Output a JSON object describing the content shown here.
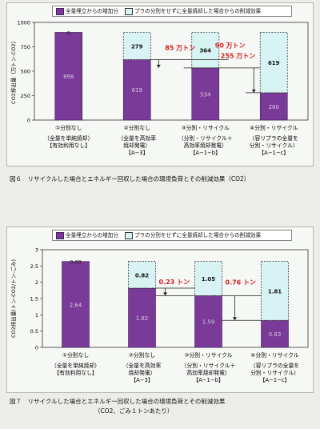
{
  "legend": {
    "increase": "全量埋立からの増加分",
    "reduction": "プラの分別をせずに全量焼却した場合からの削減効果"
  },
  "colors": {
    "increase": "#7a3b98",
    "reduction": "#d8f3f3",
    "annotation": "#d42020"
  },
  "chart_data": [
    {
      "type": "bar",
      "stacked": true,
      "ylabel": "CO2排出量（万トン-CO2）",
      "ylim": [
        0,
        1000
      ],
      "yticks": [
        0,
        250,
        500,
        750,
        1000
      ],
      "categories": [
        [
          "①分別なし",
          "（全量を単純焼却）",
          "【有効利用なし】"
        ],
        [
          "②分別なし",
          "（全量を高効率",
          "焼却発電）",
          "【A−3】"
        ],
        [
          "③分別・リサイクル",
          "（分別・リサイクル＋",
          "高効率焼却発電）",
          "【A−1−b】"
        ],
        [
          "④分別・リサイクル",
          "（容リプラの全量を",
          "分別・リサイクル）",
          "【A−1−c】"
        ]
      ],
      "series": [
        {
          "name": "全量埋立からの増加分",
          "values": [
            898,
            619,
            534,
            280
          ],
          "labels": [
            "898",
            "619",
            "534",
            "280"
          ]
        },
        {
          "name": "プラの分別をせずに全量焼却した場合からの削減効果",
          "values": [
            0,
            279,
            364,
            619
          ],
          "labels": [
            "0",
            "279",
            "364",
            "619"
          ]
        }
      ],
      "annotations": [
        "85 万トン",
        "90 万トン",
        "255 万トン"
      ],
      "caption": "図６　リサイクルした場合とエネルギー回収した場合の環境負荷とその削減効果（CO2）"
    },
    {
      "type": "bar",
      "stacked": true,
      "ylabel": "CO2排出量(トン-CO2/トン-ごみ)",
      "ylim": [
        0,
        3.0
      ],
      "yticks": [
        0,
        0.5,
        1.0,
        1.5,
        2.0,
        2.5,
        3.0
      ],
      "categories": [
        [
          "①分別なし",
          "（全量を単純焼却）",
          "【有効利用なし】"
        ],
        [
          "②分別なし",
          "（全量を高効率",
          "焼却発電）",
          "【A−3】"
        ],
        [
          "③分別・リサイクル",
          "（分別・リサイクル＋",
          "高効率焼却発電）",
          "【A−1−b】"
        ],
        [
          "④分別・リサイクル",
          "（容リプラの全量を",
          "分別・リサイクル）",
          "【A−1−c】"
        ]
      ],
      "series": [
        {
          "name": "全量埋立からの増加分",
          "values": [
            2.64,
            1.82,
            1.59,
            0.83
          ],
          "labels": [
            "2.64",
            "1.82",
            "1.59",
            "0.83"
          ]
        },
        {
          "name": "プラの分別をせずに全量焼却した場合からの削減効果",
          "values": [
            0,
            0.82,
            1.05,
            1.81
          ],
          "labels": [
            "0.00",
            "0.82",
            "1.05",
            "1.81"
          ]
        }
      ],
      "annotations": [
        "0.23 トン",
        "0.76 トン"
      ],
      "caption": "図７　リサイクルした場合とエネルギー回収した場合の環境負荷とその削減効果",
      "caption2": "（CO2、ごみ１トンあたり）"
    }
  ]
}
